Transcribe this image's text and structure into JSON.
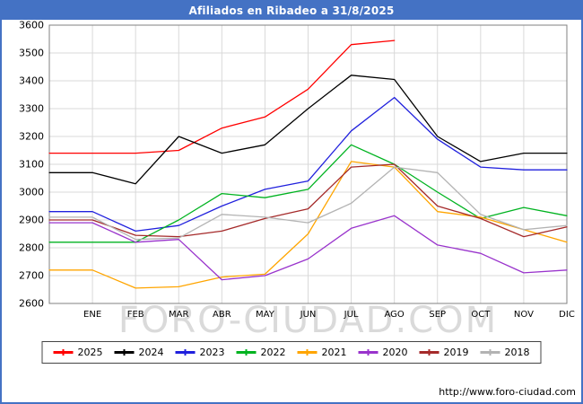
{
  "title": "Afiliados en Ribadeo a 31/8/2025",
  "watermark": {
    "text": "FORO-CIUDAD.COM",
    "color": "#d4d4d4"
  },
  "footer": {
    "url": "http://www.foro-ciudad.com"
  },
  "colors": {
    "frame": "#4472c4",
    "titlebar_bg": "#4472c4",
    "titlebar_text": "#ffffff",
    "grid": "#d9d9d9",
    "axis": "#808080",
    "text": "#000000"
  },
  "chart_data": {
    "type": "line",
    "title": "Afiliados en Ribadeo a 31/8/2025",
    "categories": [
      "ENE",
      "FEB",
      "MAR",
      "ABR",
      "MAY",
      "JUN",
      "JUL",
      "AGO",
      "SEP",
      "OCT",
      "NOV",
      "DIC"
    ],
    "yticks": [
      2600,
      2700,
      2800,
      2900,
      3000,
      3100,
      3200,
      3300,
      3400,
      3500,
      3600
    ],
    "ylim": [
      2600,
      3600
    ],
    "xlabel": "",
    "ylabel": "",
    "grid": true,
    "legend_position": "bottom",
    "series": [
      {
        "name": "2025",
        "color": "#ff0000",
        "values": [
          3140,
          3140,
          3150,
          3230,
          3270,
          3370,
          3530,
          3545
        ]
      },
      {
        "name": "2024",
        "color": "#000000",
        "values": [
          3070,
          3030,
          3200,
          3140,
          3170,
          3300,
          3420,
          3405,
          3200,
          3110,
          3140,
          3140
        ]
      },
      {
        "name": "2023",
        "color": "#2020dd",
        "values": [
          2930,
          2860,
          2880,
          2950,
          3010,
          3040,
          3220,
          3340,
          3190,
          3090,
          3080,
          3080
        ]
      },
      {
        "name": "2022",
        "color": "#00b320",
        "values": [
          2820,
          2820,
          2900,
          2995,
          2980,
          3010,
          3170,
          3100,
          3000,
          2905,
          2945,
          2915
        ]
      },
      {
        "name": "2021",
        "color": "#ffa500",
        "values": [
          2720,
          2655,
          2660,
          2695,
          2705,
          2850,
          3110,
          3090,
          2930,
          2910,
          2865,
          2820
        ]
      },
      {
        "name": "2020",
        "color": "#9933cc",
        "values": [
          2890,
          2820,
          2830,
          2685,
          2700,
          2760,
          2870,
          2915,
          2810,
          2780,
          2710,
          2720
        ]
      },
      {
        "name": "2019",
        "color": "#a52a2a",
        "values": [
          2900,
          2845,
          2840,
          2860,
          2905,
          2940,
          3090,
          3100,
          2950,
          2905,
          2840,
          2875
        ]
      },
      {
        "name": "2018",
        "color": "#b3b3b3",
        "values": [
          2910,
          2830,
          2835,
          2920,
          2910,
          2890,
          2960,
          3090,
          3070,
          2920,
          2865,
          2880
        ]
      }
    ]
  }
}
